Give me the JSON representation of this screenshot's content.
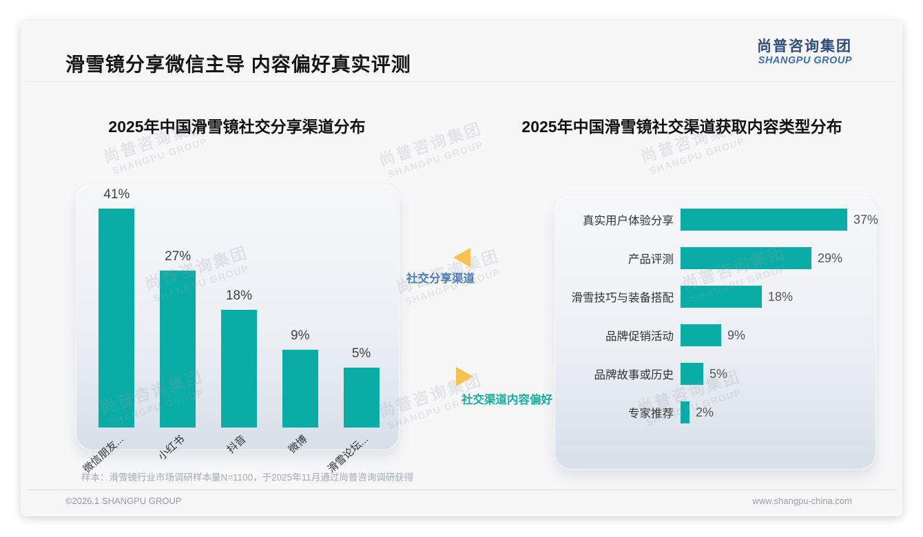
{
  "page": {
    "title": "滑雪镜分享微信主导 内容偏好真实评测",
    "logo": {
      "cn": "尚普咨询集团",
      "en": "SHANGPU GROUP"
    },
    "watermark": {
      "cn": "尚普咨询集团",
      "en": "SHANGPU GROUP"
    },
    "colors": {
      "bar_teal": "#09ada6",
      "accent_yellow": "#f6c351",
      "annotation_blue": "#4d7fb5",
      "annotation_teal": "#13b09e",
      "logo_navy": "#2d4d7c",
      "logo_blue": "#3a6db2"
    }
  },
  "annotations": {
    "left_arrow_label": "社交分享渠道",
    "right_arrow_label": "社交渠道内容偏好"
  },
  "footer": {
    "sample_note": "样本：滑雪镜行业市场调研样本量N=1100，于2025年11月通过尚普咨询调研获得",
    "copyright": "©2026.1 SHANGPU GROUP",
    "website": "www.shangpu-china.com"
  },
  "chart_data": [
    {
      "type": "bar",
      "orientation": "vertical",
      "title": "2025年中国滑雪镜社交分享渠道分布",
      "categories": [
        "微信朋友...",
        "小红书",
        "抖音",
        "微博",
        "滑雪论坛..."
      ],
      "values": [
        41,
        27,
        18,
        9,
        5
      ],
      "data_labels": [
        "41%",
        "27%",
        "18%",
        "9%",
        "5%"
      ],
      "unit": "%",
      "legend": "none",
      "grid": false
    },
    {
      "type": "bar",
      "orientation": "horizontal",
      "title": "2025年中国滑雪镜社交渠道获取内容类型分布",
      "categories": [
        "真实用户体验分享",
        "产品评测",
        "滑雪技巧与装备搭配",
        "品牌促销活动",
        "品牌故事或历史",
        "专家推荐"
      ],
      "values": [
        37,
        29,
        18,
        9,
        5,
        2
      ],
      "data_labels": [
        "37%",
        "29%",
        "18%",
        "9%",
        "5%",
        "2%"
      ],
      "unit": "%",
      "legend": "none",
      "grid": false
    }
  ]
}
